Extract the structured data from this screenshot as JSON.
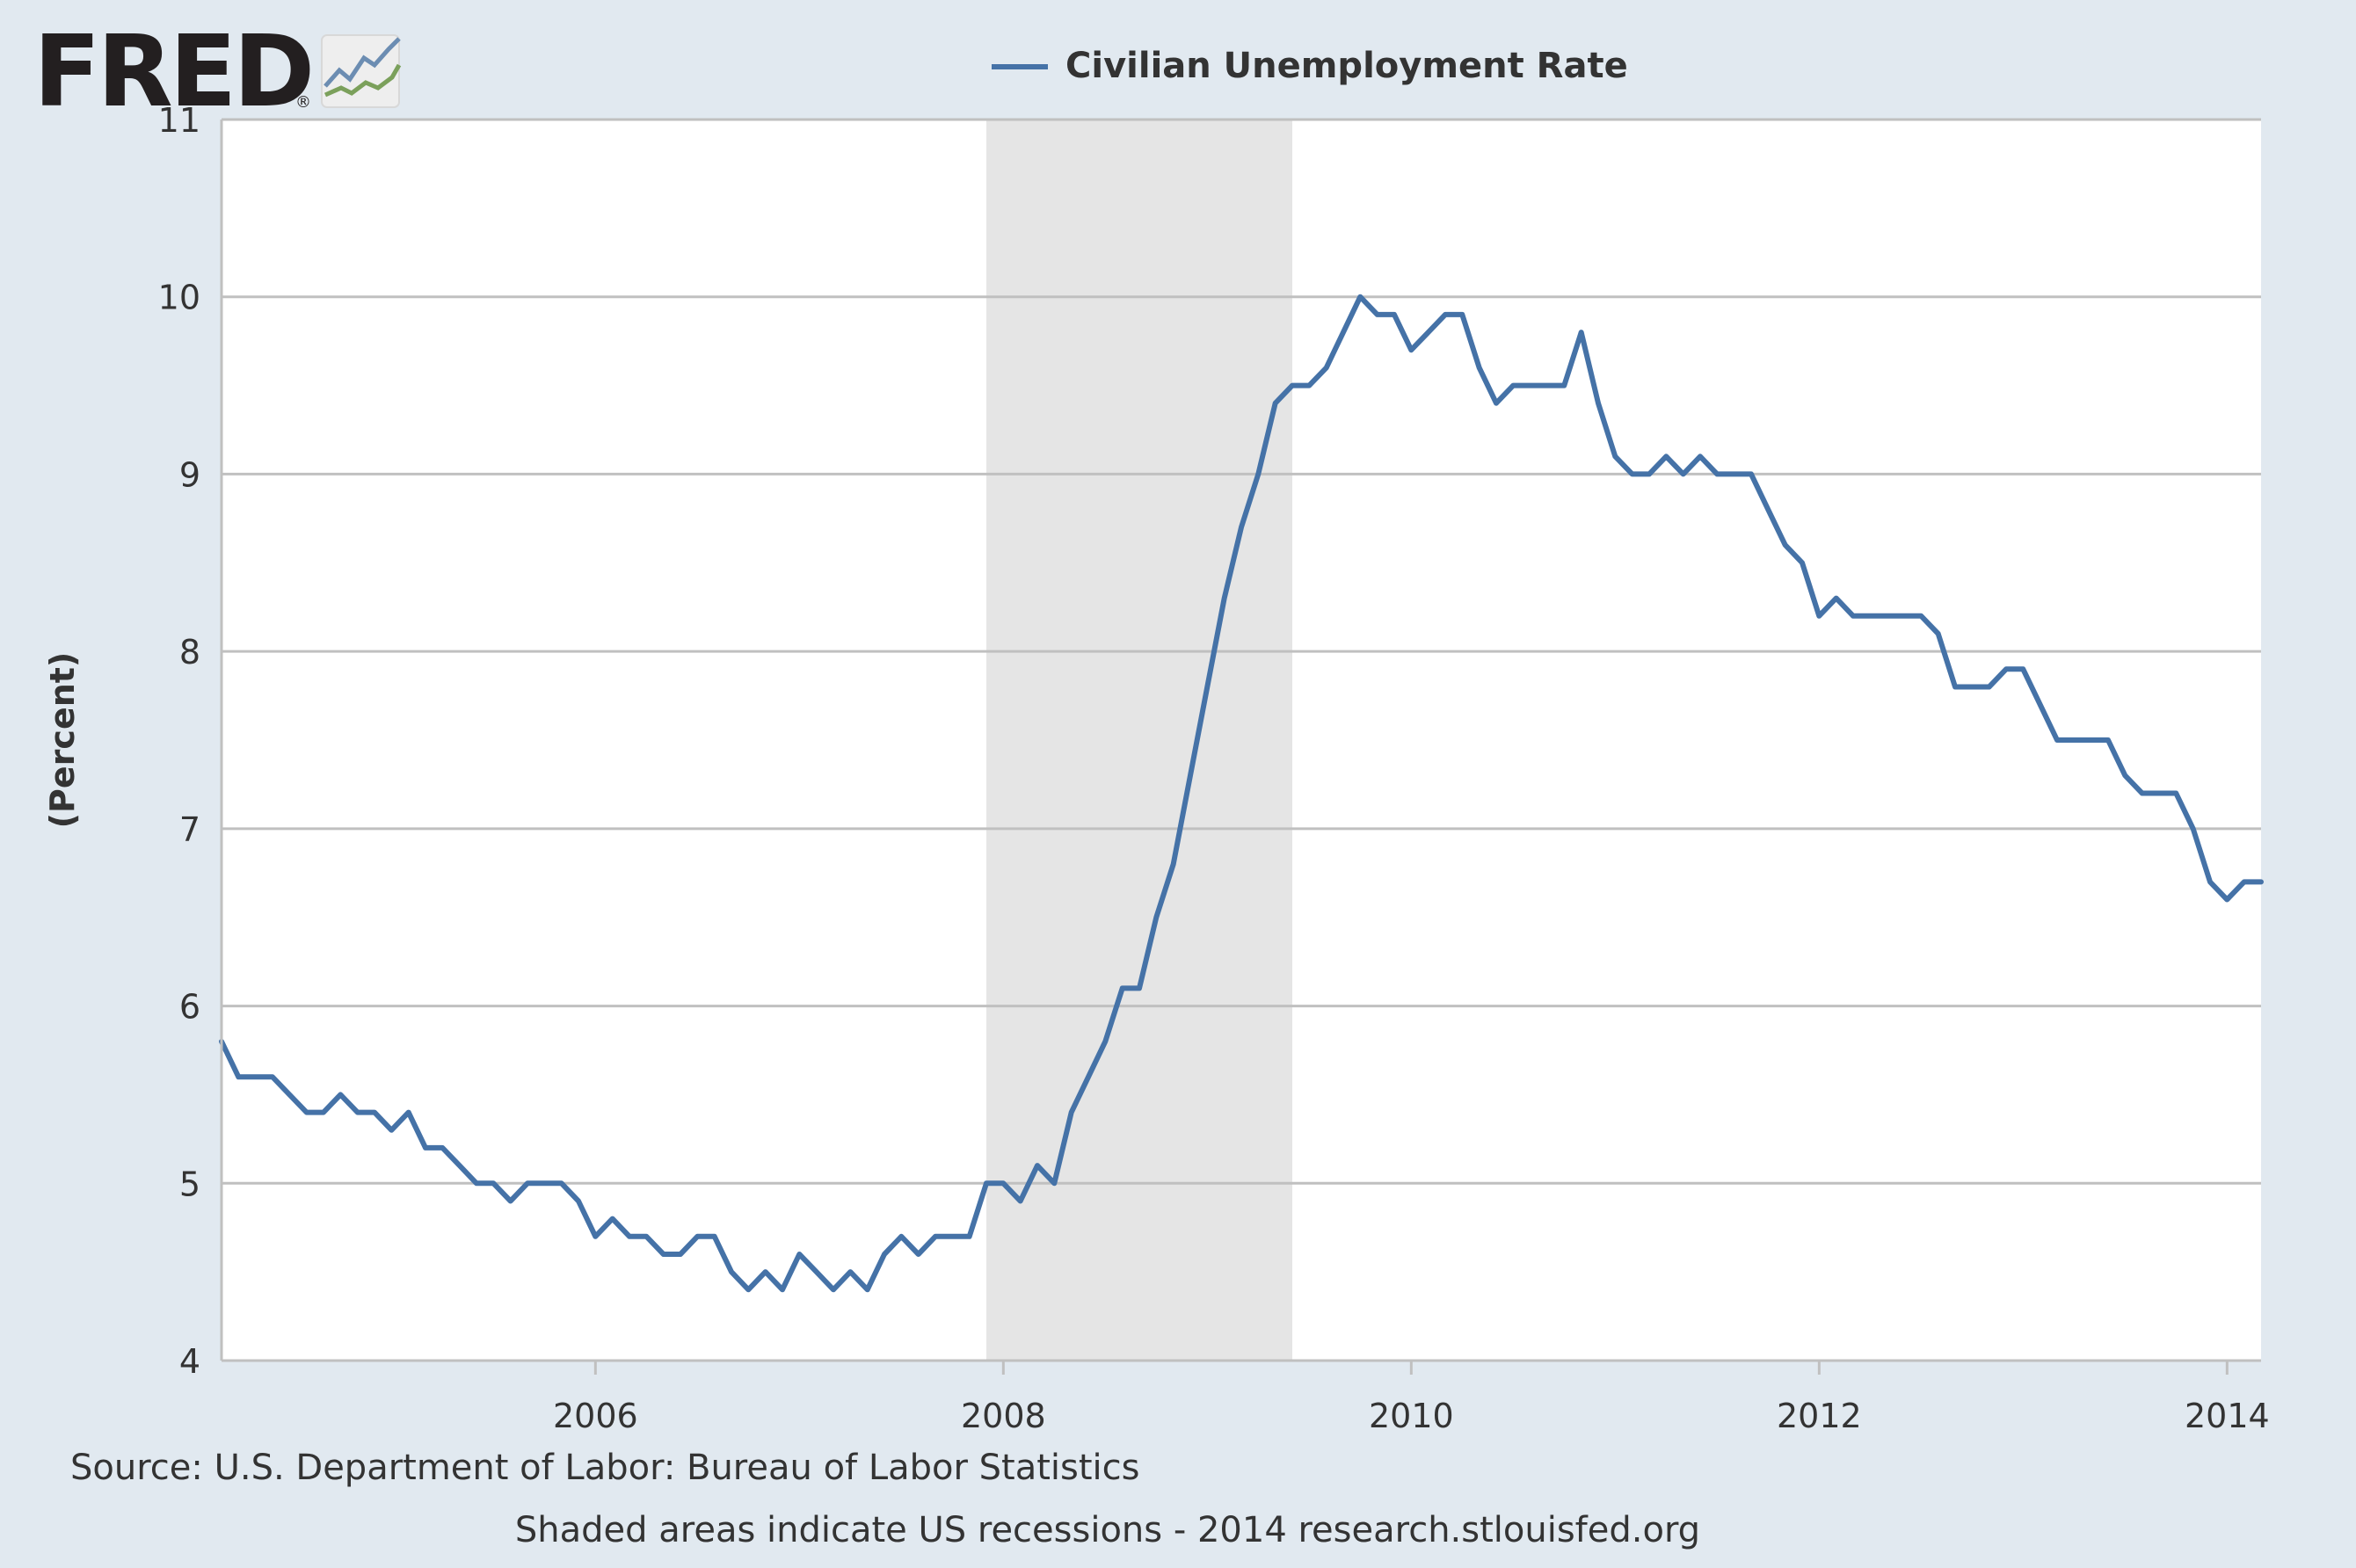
{
  "logo": {
    "text": "FRED",
    "registered_mark": "®"
  },
  "icons": {
    "logo_chart": "fred-sparkline-icon"
  },
  "colors": {
    "background": "#e1e9f0",
    "plot_background": "#ffffff",
    "series_line": "#4572a7",
    "recession_shade": "#e5e5e5",
    "grid": "#c0c0c0",
    "text": "#333333",
    "logo_text": "#231f20"
  },
  "footer": {
    "source": "Source: U.S. Department of Labor: Bureau of Labor Statistics",
    "note": "Shaded areas indicate US recessions - 2014 research.stlouisfed.org"
  },
  "chart_data": {
    "type": "line",
    "title": "",
    "xlabel": "",
    "ylabel": "(Percent)",
    "legend": {
      "position": "top-center",
      "entries": [
        "Civilian Unemployment Rate"
      ]
    },
    "grid": true,
    "xlim": [
      "2004-03",
      "2014-03"
    ],
    "ylim": [
      4,
      11
    ],
    "x_ticks": [
      "2006",
      "2008",
      "2010",
      "2012",
      "2014"
    ],
    "y_ticks": [
      4,
      5,
      6,
      7,
      8,
      9,
      10,
      11
    ],
    "recession_shading": [
      {
        "start": "2007-12",
        "end": "2009-06"
      }
    ],
    "series": [
      {
        "name": "Civilian Unemployment Rate",
        "start": "2004-03",
        "frequency": "monthly",
        "values": [
          5.8,
          5.6,
          5.6,
          5.6,
          5.5,
          5.4,
          5.4,
          5.5,
          5.4,
          5.4,
          5.3,
          5.4,
          5.2,
          5.2,
          5.1,
          5.0,
          5.0,
          4.9,
          5.0,
          5.0,
          5.0,
          4.9,
          4.7,
          4.8,
          4.7,
          4.7,
          4.6,
          4.6,
          4.7,
          4.7,
          4.5,
          4.4,
          4.5,
          4.4,
          4.6,
          4.5,
          4.4,
          4.5,
          4.4,
          4.6,
          4.7,
          4.6,
          4.7,
          4.7,
          4.7,
          5.0,
          5.0,
          4.9,
          5.1,
          5.0,
          5.4,
          5.6,
          5.8,
          6.1,
          6.1,
          6.5,
          6.8,
          7.3,
          7.8,
          8.3,
          8.7,
          9.0,
          9.4,
          9.5,
          9.5,
          9.6,
          9.8,
          10.0,
          9.9,
          9.9,
          9.7,
          9.8,
          9.9,
          9.9,
          9.6,
          9.4,
          9.5,
          9.5,
          9.5,
          9.5,
          9.8,
          9.4,
          9.1,
          9.0,
          9.0,
          9.1,
          9.0,
          9.1,
          9.0,
          9.0,
          9.0,
          8.8,
          8.6,
          8.5,
          8.2,
          8.3,
          8.2,
          8.2,
          8.2,
          8.2,
          8.2,
          8.1,
          7.8,
          7.8,
          7.8,
          7.9,
          7.9,
          7.7,
          7.5,
          7.5,
          7.5,
          7.5,
          7.3,
          7.2,
          7.2,
          7.2,
          7.0,
          6.7,
          6.6,
          6.7,
          6.7
        ]
      }
    ]
  }
}
